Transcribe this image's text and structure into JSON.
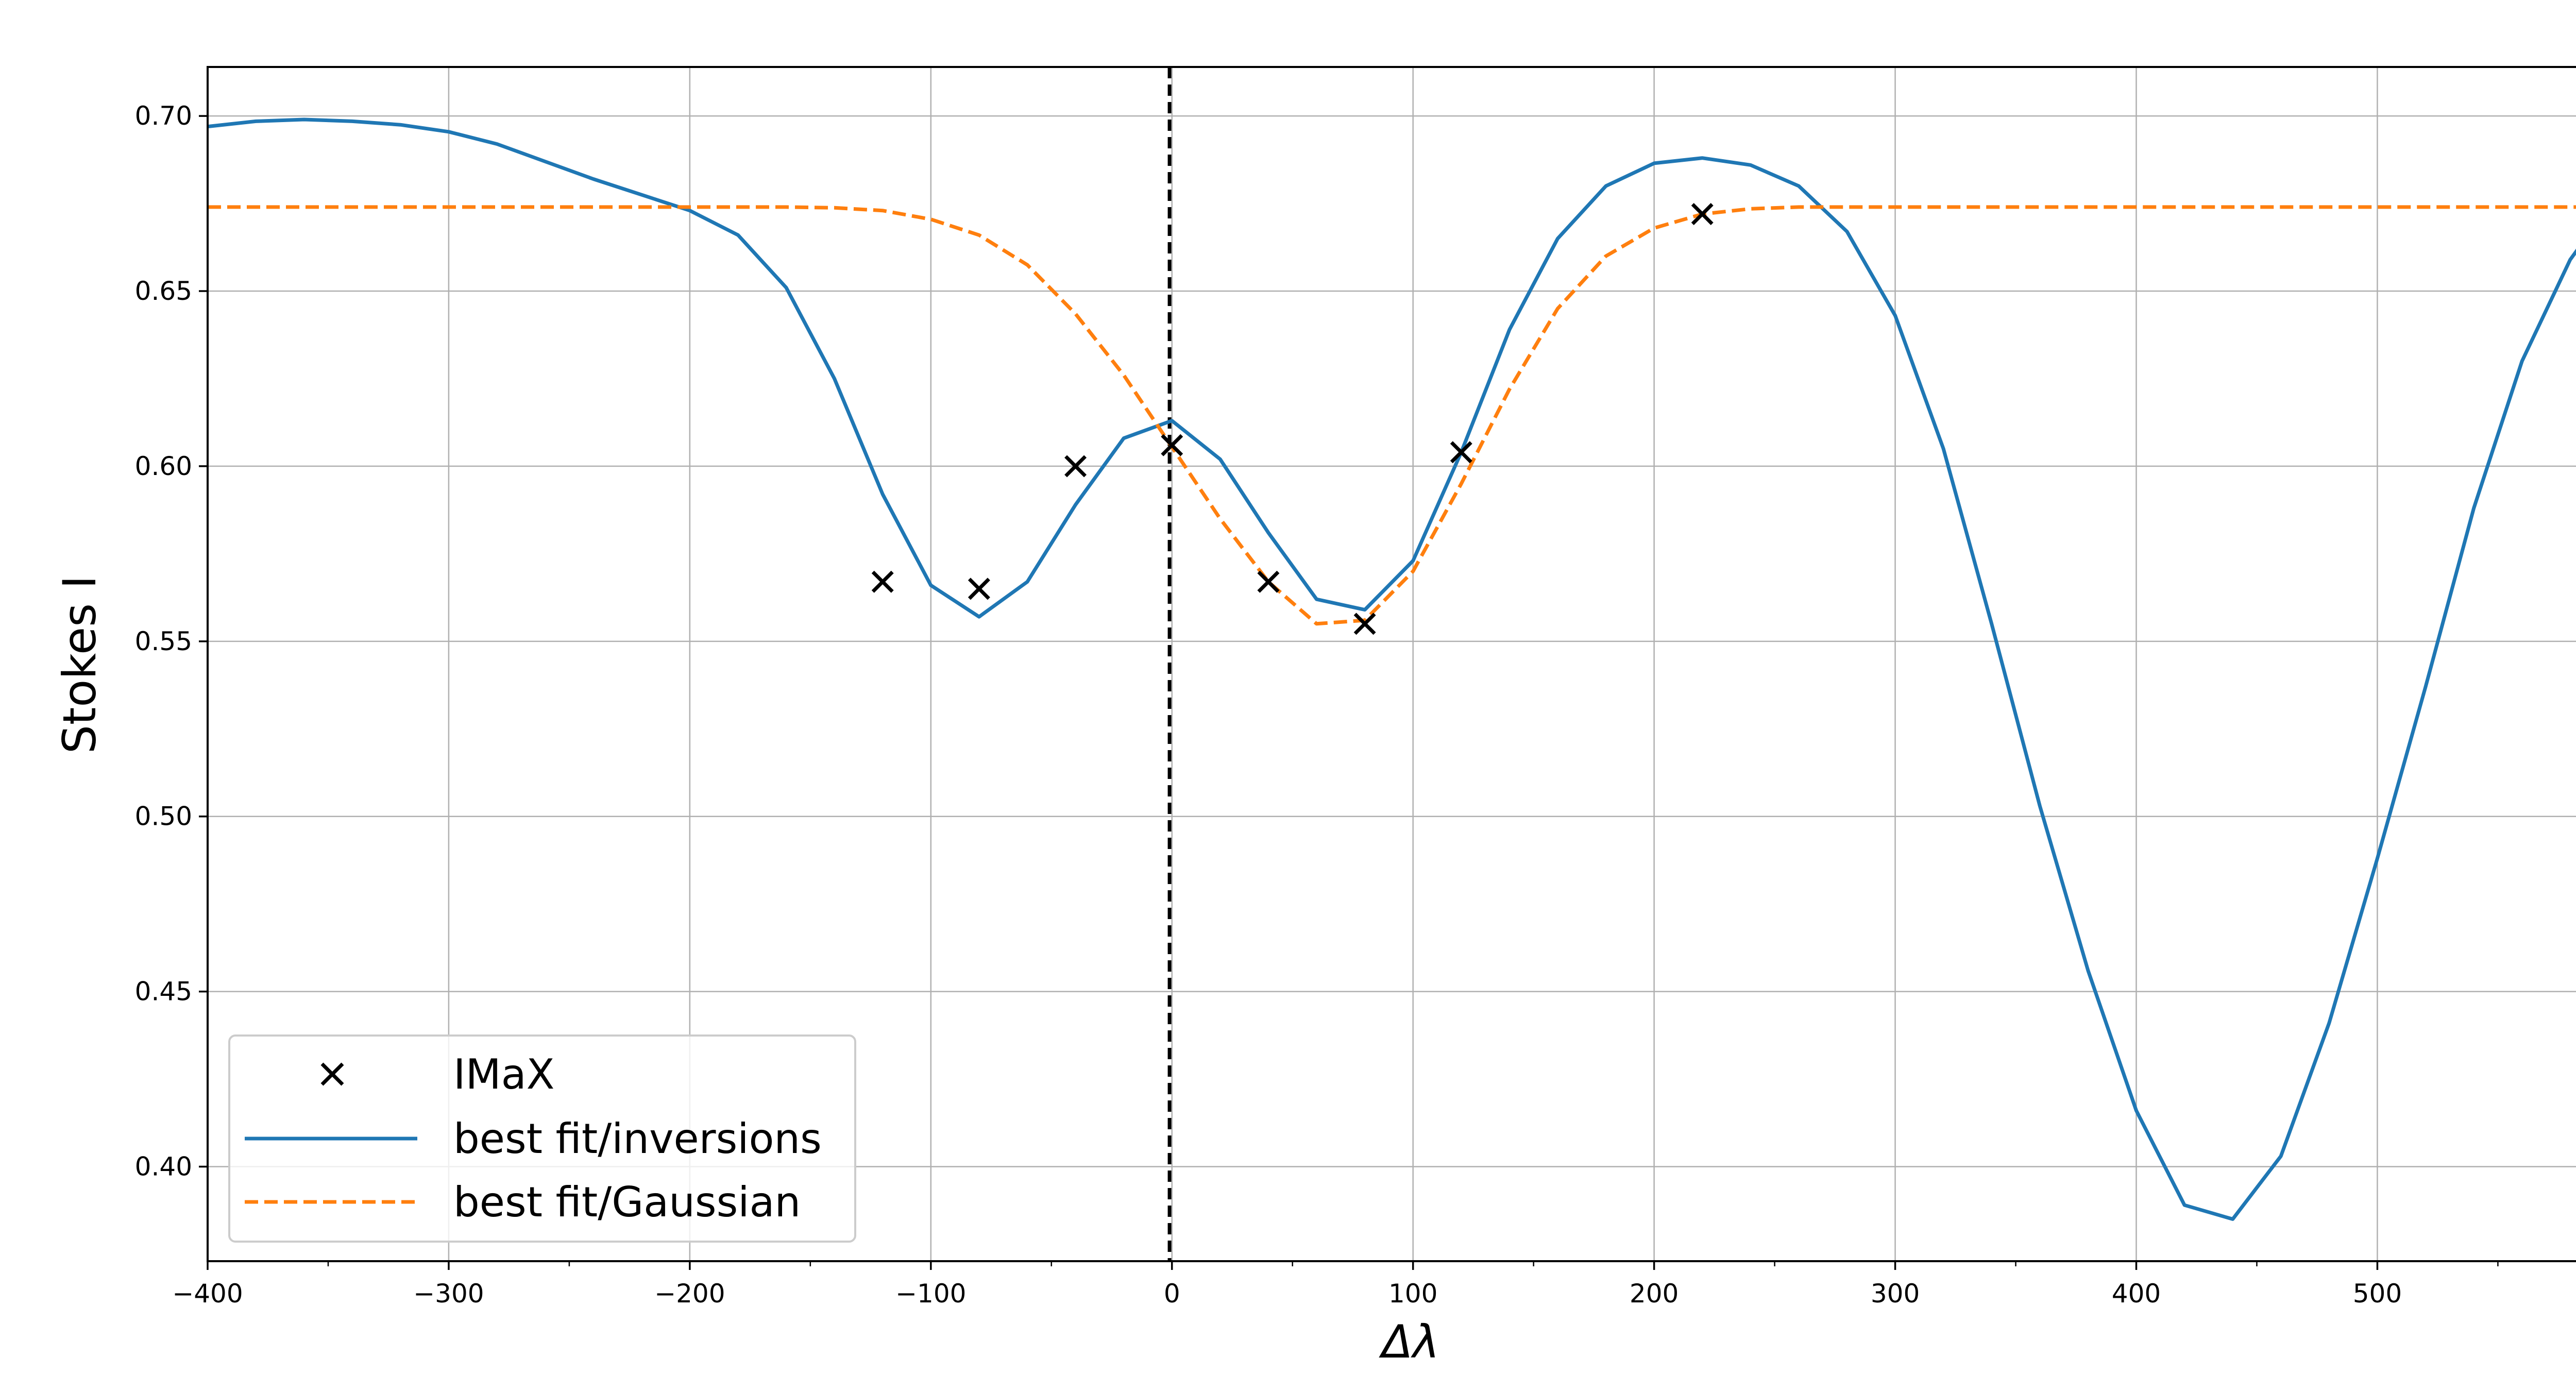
{
  "chart_data": {
    "type": "line",
    "xlabel": "Δλ",
    "ylabel": "Stokes I",
    "xlim": [
      -400,
      598
    ],
    "ylim": [
      0.373,
      0.714
    ],
    "grid": true,
    "legend_position": "lower-left",
    "x_ticks": [
      -400,
      -300,
      -200,
      -100,
      0,
      100,
      200,
      300,
      400,
      500
    ],
    "x_tick_labels": [
      "−400",
      "−300",
      "−200",
      "−100",
      "0",
      "100",
      "200",
      "300",
      "400",
      "500"
    ],
    "y_ticks": [
      0.4,
      0.45,
      0.5,
      0.55,
      0.6,
      0.65,
      0.7
    ],
    "y_tick_labels": [
      "0.40",
      "0.45",
      "0.50",
      "0.55",
      "0.60",
      "0.65",
      "0.70"
    ],
    "vline": {
      "x": -1,
      "style": "dashed",
      "color": "#000000"
    },
    "series": [
      {
        "name": "IMaX",
        "kind": "scatter",
        "marker": "x",
        "color": "#000000",
        "x": [
          -120,
          -80,
          -40,
          0,
          40,
          80,
          120,
          220
        ],
        "y": [
          0.567,
          0.565,
          0.6,
          0.606,
          0.567,
          0.555,
          0.604,
          0.672
        ]
      },
      {
        "name": "best fit/inversions",
        "kind": "line",
        "style": "solid",
        "color": "#1f77b4",
        "x": [
          -400,
          -380,
          -360,
          -340,
          -320,
          -300,
          -280,
          -260,
          -240,
          -220,
          -200,
          -180,
          -160,
          -140,
          -120,
          -100,
          -80,
          -60,
          -40,
          -20,
          0,
          20,
          40,
          60,
          80,
          100,
          120,
          140,
          160,
          180,
          200,
          220,
          240,
          260,
          280,
          300,
          320,
          340,
          360,
          380,
          400,
          420,
          440,
          460,
          480,
          500,
          520,
          540,
          560,
          580,
          598
        ],
        "y": [
          0.697,
          0.6985,
          0.699,
          0.6985,
          0.6975,
          0.6955,
          0.692,
          0.687,
          0.682,
          0.6775,
          0.673,
          0.666,
          0.651,
          0.625,
          0.592,
          0.566,
          0.557,
          0.567,
          0.589,
          0.608,
          0.613,
          0.602,
          0.581,
          0.562,
          0.559,
          0.573,
          0.604,
          0.639,
          0.665,
          0.68,
          0.6865,
          0.688,
          0.686,
          0.68,
          0.667,
          0.643,
          0.605,
          0.555,
          0.503,
          0.456,
          0.416,
          0.389,
          0.385,
          0.403,
          0.441,
          0.488,
          0.537,
          0.588,
          0.63,
          0.659,
          0.676
        ]
      },
      {
        "name": "best fit/Gaussian",
        "kind": "line",
        "style": "dashed",
        "color": "#ff7f0e",
        "x": [
          -400,
          -300,
          -200,
          -160,
          -140,
          -120,
          -100,
          -80,
          -60,
          -40,
          -20,
          0,
          20,
          40,
          60,
          80,
          100,
          120,
          140,
          160,
          180,
          200,
          220,
          240,
          260,
          280,
          300,
          400,
          500,
          598
        ],
        "y": [
          0.674,
          0.674,
          0.674,
          0.674,
          0.6738,
          0.673,
          0.6705,
          0.666,
          0.6575,
          0.6435,
          0.626,
          0.6055,
          0.585,
          0.567,
          0.555,
          0.556,
          0.57,
          0.595,
          0.622,
          0.645,
          0.66,
          0.668,
          0.672,
          0.6735,
          0.674,
          0.674,
          0.674,
          0.674,
          0.674,
          0.674
        ]
      }
    ]
  }
}
